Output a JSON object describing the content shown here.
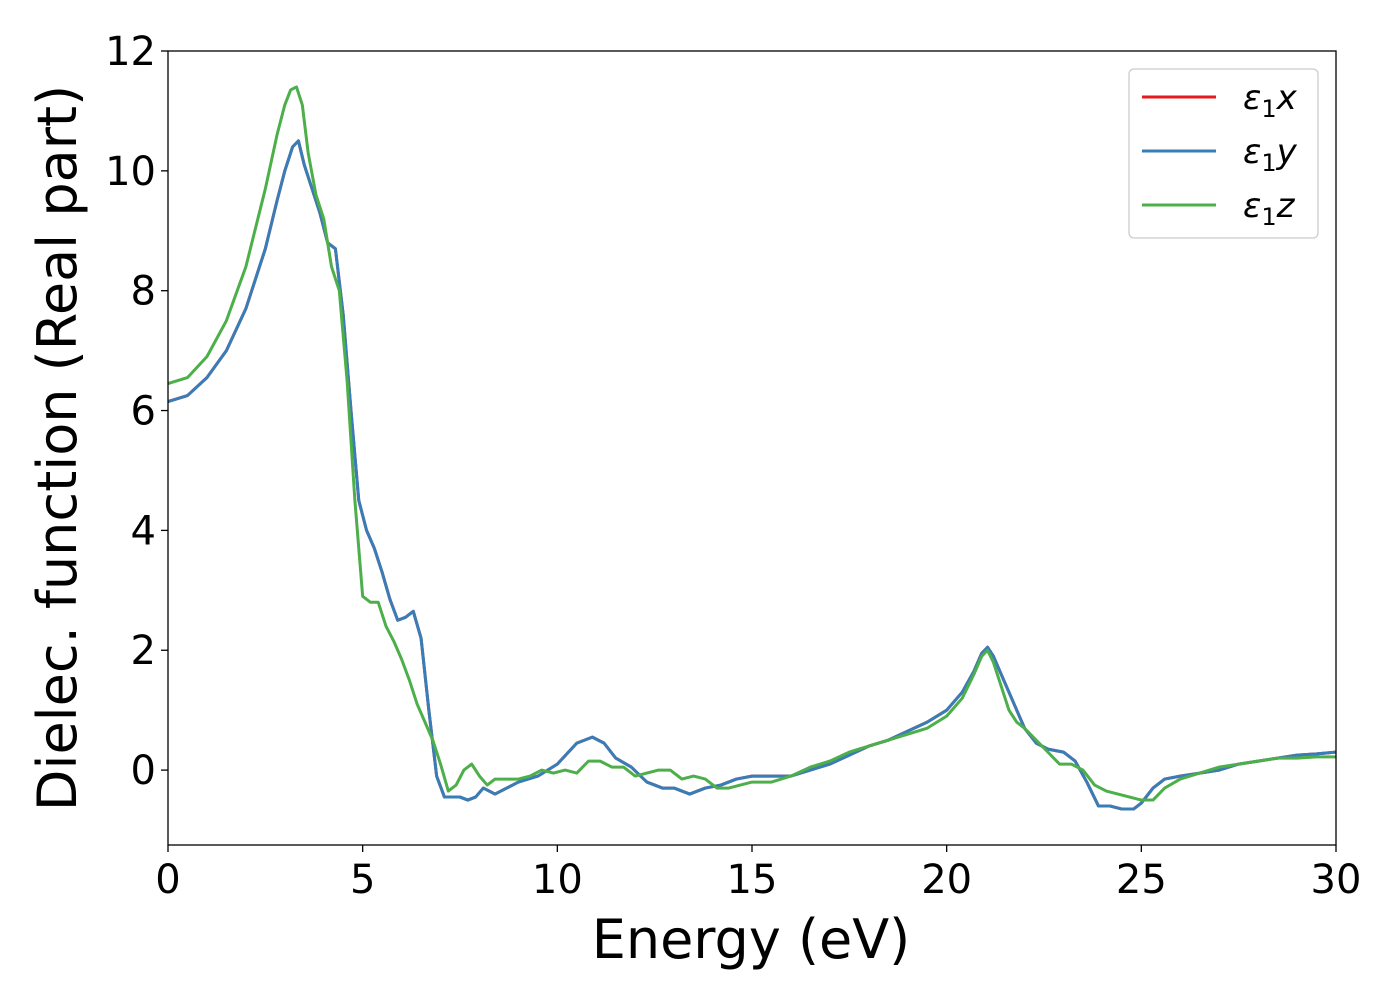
{
  "chart_data": {
    "type": "line",
    "xlabel": "Energy (eV)",
    "ylabel": "Dielec. function (Real part)",
    "xlim": [
      0,
      30
    ],
    "ylim": [
      -1.25,
      12
    ],
    "xticks": [
      0,
      5,
      10,
      15,
      20,
      25,
      30
    ],
    "yticks": [
      0,
      2,
      4,
      6,
      8,
      10,
      12
    ],
    "grid": false,
    "legend_position": "top-right",
    "series": [
      {
        "name": "ε₁x",
        "label_main": "ε",
        "label_sub": "1",
        "label_var": "x",
        "color": "#e41a1c",
        "x": [
          0,
          0.5,
          1.0,
          1.5,
          2.0,
          2.5,
          2.8,
          3.0,
          3.2,
          3.35,
          3.5,
          3.7,
          3.9,
          4.1,
          4.3,
          4.5,
          4.7,
          4.9,
          5.1,
          5.3,
          5.5,
          5.7,
          5.9,
          6.1,
          6.3,
          6.5,
          6.7,
          6.9,
          7.1,
          7.3,
          7.5,
          7.7,
          7.9,
          8.1,
          8.4,
          8.7,
          9.0,
          9.5,
          10.0,
          10.5,
          10.9,
          11.2,
          11.5,
          11.9,
          12.3,
          12.7,
          13.0,
          13.4,
          13.8,
          14.2,
          14.6,
          15.0,
          15.5,
          16.0,
          16.5,
          17.0,
          17.5,
          18.0,
          18.5,
          19.0,
          19.5,
          20.0,
          20.4,
          20.7,
          20.9,
          21.05,
          21.2,
          21.4,
          21.6,
          21.8,
          22.0,
          22.3,
          22.6,
          23.0,
          23.3,
          23.6,
          23.9,
          24.2,
          24.5,
          24.8,
          25.0,
          25.3,
          25.6,
          26.0,
          26.5,
          27.0,
          27.5,
          28.0,
          28.5,
          29.0,
          29.5,
          30.0
        ],
        "y": [
          6.15,
          6.25,
          6.55,
          7.0,
          7.7,
          8.7,
          9.5,
          10.0,
          10.4,
          10.5,
          10.1,
          9.7,
          9.3,
          8.8,
          8.7,
          7.6,
          6.0,
          4.5,
          4.0,
          3.7,
          3.3,
          2.85,
          2.5,
          2.55,
          2.65,
          2.2,
          1.0,
          -0.1,
          -0.45,
          -0.45,
          -0.45,
          -0.5,
          -0.45,
          -0.3,
          -0.4,
          -0.3,
          -0.2,
          -0.1,
          0.1,
          0.45,
          0.55,
          0.45,
          0.2,
          0.05,
          -0.2,
          -0.3,
          -0.3,
          -0.4,
          -0.3,
          -0.25,
          -0.15,
          -0.1,
          -0.1,
          -0.1,
          0.0,
          0.1,
          0.25,
          0.4,
          0.5,
          0.65,
          0.8,
          1.0,
          1.3,
          1.65,
          1.95,
          2.05,
          1.9,
          1.6,
          1.3,
          1.0,
          0.7,
          0.45,
          0.35,
          0.3,
          0.15,
          -0.2,
          -0.6,
          -0.6,
          -0.65,
          -0.65,
          -0.55,
          -0.3,
          -0.15,
          -0.1,
          -0.05,
          -0.0,
          0.1,
          0.15,
          0.2,
          0.25,
          0.27,
          0.3
        ]
      },
      {
        "name": "ε₁y",
        "label_main": "ε",
        "label_sub": "1",
        "label_var": "y",
        "color": "#377eb8",
        "x": [
          0,
          0.5,
          1.0,
          1.5,
          2.0,
          2.5,
          2.8,
          3.0,
          3.2,
          3.35,
          3.5,
          3.7,
          3.9,
          4.1,
          4.3,
          4.5,
          4.7,
          4.9,
          5.1,
          5.3,
          5.5,
          5.7,
          5.9,
          6.1,
          6.3,
          6.5,
          6.7,
          6.9,
          7.1,
          7.3,
          7.5,
          7.7,
          7.9,
          8.1,
          8.4,
          8.7,
          9.0,
          9.5,
          10.0,
          10.5,
          10.9,
          11.2,
          11.5,
          11.9,
          12.3,
          12.7,
          13.0,
          13.4,
          13.8,
          14.2,
          14.6,
          15.0,
          15.5,
          16.0,
          16.5,
          17.0,
          17.5,
          18.0,
          18.5,
          19.0,
          19.5,
          20.0,
          20.4,
          20.7,
          20.9,
          21.05,
          21.2,
          21.4,
          21.6,
          21.8,
          22.0,
          22.3,
          22.6,
          23.0,
          23.3,
          23.6,
          23.9,
          24.2,
          24.5,
          24.8,
          25.0,
          25.3,
          25.6,
          26.0,
          26.5,
          27.0,
          27.5,
          28.0,
          28.5,
          29.0,
          29.5,
          30.0
        ],
        "y": [
          6.15,
          6.25,
          6.55,
          7.0,
          7.7,
          8.7,
          9.5,
          10.0,
          10.4,
          10.5,
          10.1,
          9.7,
          9.3,
          8.8,
          8.7,
          7.6,
          6.0,
          4.5,
          4.0,
          3.7,
          3.3,
          2.85,
          2.5,
          2.55,
          2.65,
          2.2,
          1.0,
          -0.1,
          -0.45,
          -0.45,
          -0.45,
          -0.5,
          -0.45,
          -0.3,
          -0.4,
          -0.3,
          -0.2,
          -0.1,
          0.1,
          0.45,
          0.55,
          0.45,
          0.2,
          0.05,
          -0.2,
          -0.3,
          -0.3,
          -0.4,
          -0.3,
          -0.25,
          -0.15,
          -0.1,
          -0.1,
          -0.1,
          0.0,
          0.1,
          0.25,
          0.4,
          0.5,
          0.65,
          0.8,
          1.0,
          1.3,
          1.65,
          1.95,
          2.05,
          1.9,
          1.6,
          1.3,
          1.0,
          0.7,
          0.45,
          0.35,
          0.3,
          0.15,
          -0.2,
          -0.6,
          -0.6,
          -0.65,
          -0.65,
          -0.55,
          -0.3,
          -0.15,
          -0.1,
          -0.05,
          -0.0,
          0.1,
          0.15,
          0.2,
          0.25,
          0.27,
          0.3
        ]
      },
      {
        "name": "ε₁z",
        "label_main": "ε",
        "label_sub": "1",
        "label_var": "z",
        "color": "#4daf4a",
        "x": [
          0,
          0.5,
          1.0,
          1.5,
          2.0,
          2.5,
          2.8,
          3.0,
          3.15,
          3.3,
          3.45,
          3.6,
          3.8,
          4.0,
          4.2,
          4.4,
          4.6,
          4.8,
          5.0,
          5.2,
          5.4,
          5.6,
          5.8,
          6.0,
          6.2,
          6.4,
          6.6,
          6.8,
          7.0,
          7.2,
          7.4,
          7.6,
          7.8,
          8.0,
          8.2,
          8.4,
          8.7,
          9.0,
          9.3,
          9.6,
          9.9,
          10.2,
          10.5,
          10.8,
          11.1,
          11.4,
          11.7,
          12.0,
          12.3,
          12.6,
          12.9,
          13.2,
          13.5,
          13.8,
          14.1,
          14.4,
          14.7,
          15.0,
          15.5,
          16.0,
          16.5,
          17.0,
          17.5,
          18.0,
          18.5,
          19.0,
          19.5,
          20.0,
          20.4,
          20.7,
          20.9,
          21.05,
          21.2,
          21.4,
          21.6,
          21.8,
          22.0,
          22.3,
          22.6,
          22.9,
          23.2,
          23.5,
          23.8,
          24.1,
          24.4,
          24.7,
          25.0,
          25.3,
          25.6,
          26.0,
          26.5,
          27.0,
          27.5,
          28.0,
          28.5,
          29.0,
          29.5,
          30.0
        ],
        "y": [
          6.45,
          6.55,
          6.9,
          7.5,
          8.4,
          9.7,
          10.6,
          11.1,
          11.35,
          11.4,
          11.1,
          10.3,
          9.6,
          9.2,
          8.4,
          8.0,
          6.5,
          4.5,
          2.9,
          2.8,
          2.8,
          2.4,
          2.15,
          1.85,
          1.5,
          1.1,
          0.8,
          0.5,
          0.1,
          -0.35,
          -0.25,
          0.0,
          0.1,
          -0.1,
          -0.25,
          -0.15,
          -0.15,
          -0.15,
          -0.1,
          0.0,
          -0.05,
          0.0,
          -0.05,
          0.15,
          0.15,
          0.05,
          0.05,
          -0.1,
          -0.05,
          0.0,
          0.0,
          -0.15,
          -0.1,
          -0.15,
          -0.3,
          -0.3,
          -0.25,
          -0.2,
          -0.2,
          -0.1,
          0.05,
          0.15,
          0.3,
          0.4,
          0.5,
          0.6,
          0.7,
          0.9,
          1.2,
          1.6,
          1.9,
          2.0,
          1.8,
          1.4,
          1.0,
          0.8,
          0.7,
          0.5,
          0.3,
          0.1,
          0.1,
          0.0,
          -0.25,
          -0.35,
          -0.4,
          -0.45,
          -0.5,
          -0.5,
          -0.3,
          -0.15,
          -0.05,
          0.05,
          0.1,
          0.15,
          0.2,
          0.2,
          0.22,
          0.22
        ]
      }
    ]
  }
}
